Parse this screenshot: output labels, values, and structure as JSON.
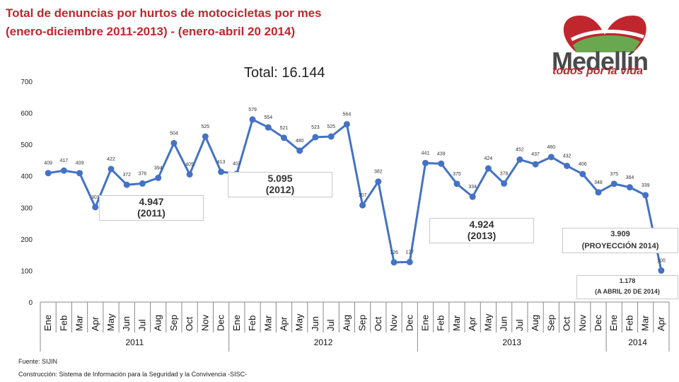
{
  "title_line1": "Total de denuncias por hurtos de motocicletas por mes",
  "title_line2": "(enero-diciembre 2011-2013) - (enero-abril 20 2014)",
  "logo": {
    "name": "Medellín",
    "tagline": "todos por la vida"
  },
  "total_label": "Total: 16.144",
  "boxes": {
    "y2011": {
      "value": "4.947",
      "label": "(2011)"
    },
    "y2012": {
      "value": "5.095",
      "label": "(2012)"
    },
    "y2013": {
      "value": "4.924",
      "label": "(2013)"
    },
    "proj": {
      "value": "3.909",
      "label": "(PROYECCIÓN 2014)"
    },
    "apr": {
      "value": "1.178",
      "label": "(A ABRIL 20 DE 2014)"
    }
  },
  "footer": {
    "source": "Fuente: SIJIN",
    "construction": "Construcción: Sistema de Información para la Seguridad y la Convivencia -SISC-"
  },
  "colors": {
    "series": "#4472c4",
    "title": "#c0262e"
  },
  "chart_data": {
    "type": "line",
    "ylim": [
      0,
      700
    ],
    "yticks": [
      0,
      100,
      200,
      300,
      400,
      500,
      600,
      700
    ],
    "grid": false,
    "months": [
      "Ene",
      "Feb",
      "Mar",
      "Apr",
      "May",
      "Jun",
      "Jul",
      "Aug",
      "Sep",
      "Oct",
      "Nov",
      "Dec",
      "Ene",
      "Feb",
      "Mar",
      "Apr",
      "May",
      "Jun",
      "Jul",
      "Aug",
      "Sep",
      "Oct",
      "Nov",
      "Dec",
      "Ene",
      "Feb",
      "Mar",
      "Apr",
      "May",
      "Jun",
      "Jul",
      "Aug",
      "Sep",
      "Oct",
      "Nov",
      "Dec",
      "Ene",
      "Feb",
      "Mar",
      "Apr"
    ],
    "years": [
      {
        "label": "2011",
        "count": 12
      },
      {
        "label": "2012",
        "count": 12
      },
      {
        "label": "2013",
        "count": 12
      },
      {
        "label": "2014",
        "count": 4
      }
    ],
    "values": [
      409,
      417,
      409,
      301,
      422,
      372,
      376,
      394,
      504,
      405,
      525,
      413,
      407,
      579,
      554,
      521,
      480,
      523,
      525,
      564,
      307,
      382,
      126,
      127,
      441,
      439,
      375,
      334,
      424,
      376,
      452,
      437,
      460,
      432,
      406,
      348,
      375,
      364,
      339,
      100
    ]
  }
}
